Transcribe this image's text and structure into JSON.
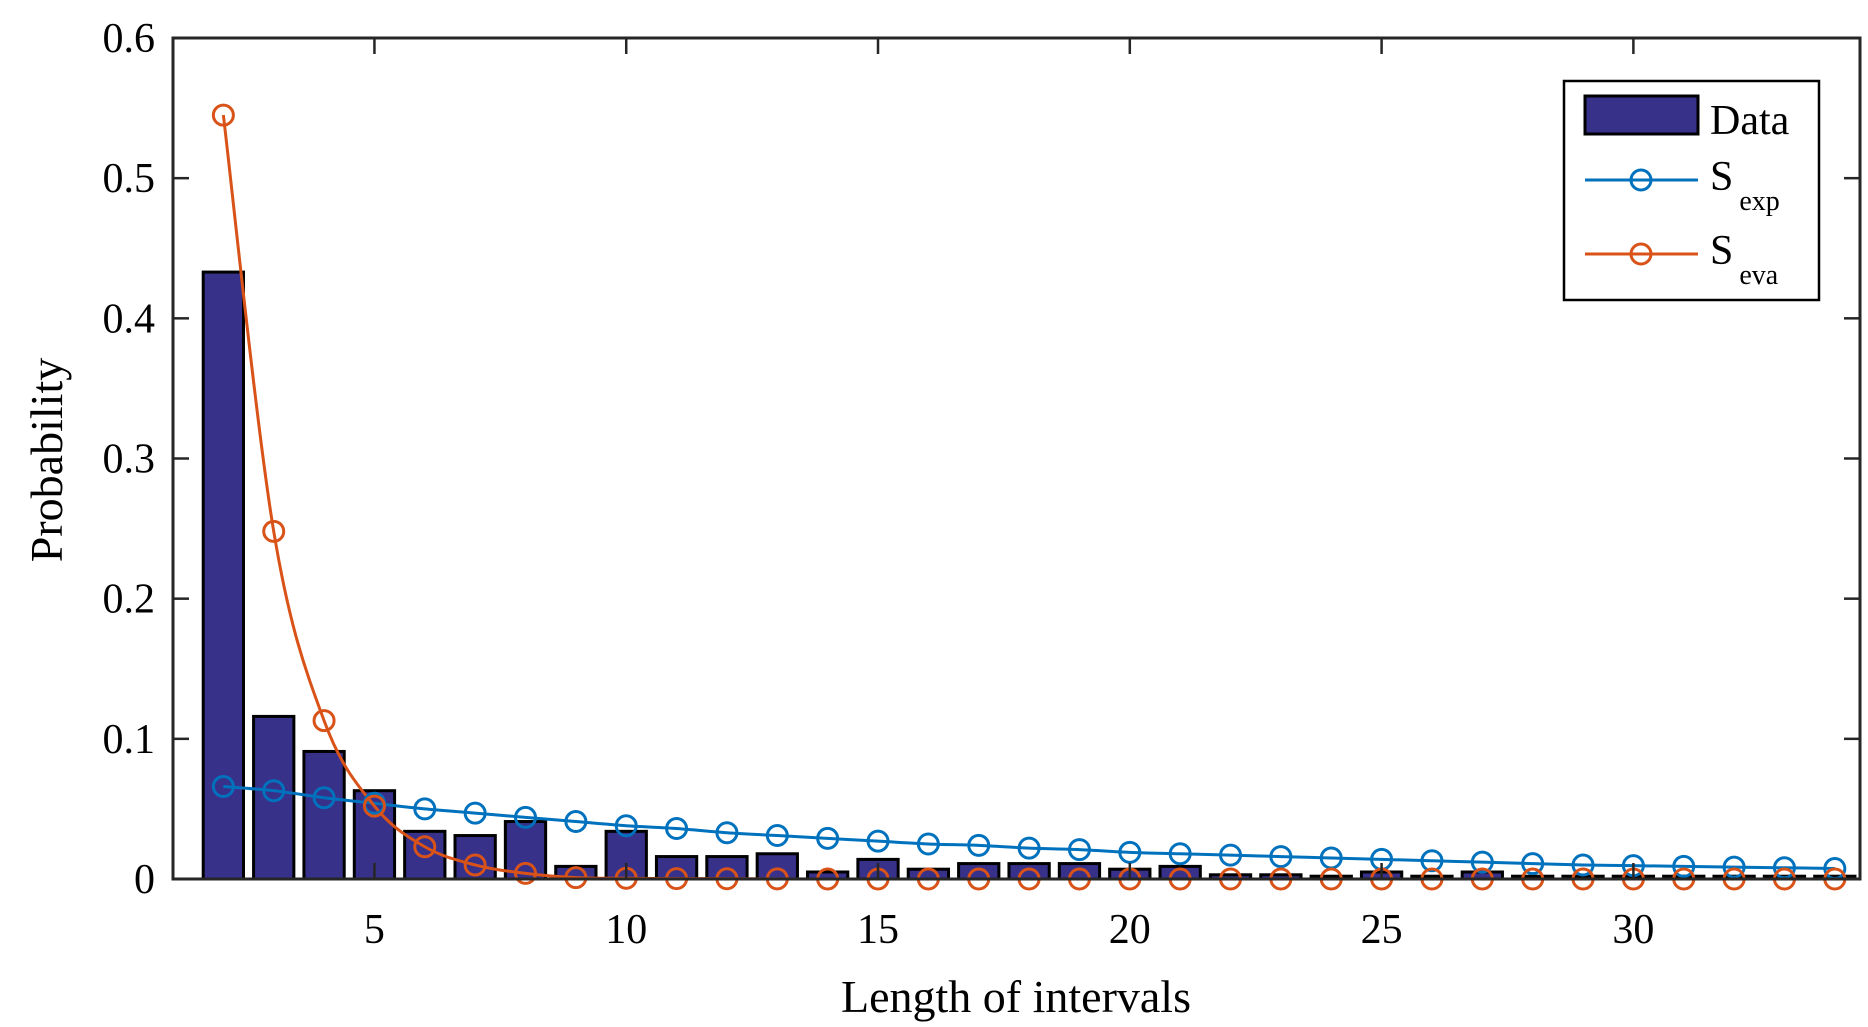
{
  "chart_data": {
    "type": "bar",
    "xlabel": "Length of intervals",
    "ylabel": "Probability",
    "xlim": [
      1,
      34.5
    ],
    "ylim": [
      0,
      0.6
    ],
    "xticks": [
      5,
      10,
      15,
      20,
      25,
      30
    ],
    "yticks": [
      0,
      0.1,
      0.2,
      0.3,
      0.4,
      0.5,
      0.6
    ],
    "xtick_labels": [
      "5",
      "10",
      "15",
      "20",
      "25",
      "30"
    ],
    "ytick_labels": [
      "0",
      "0.1",
      "0.2",
      "0.3",
      "0.4",
      "0.5",
      "0.6"
    ],
    "grid": false,
    "legend_position": "top-right",
    "x": [
      2,
      3,
      4,
      5,
      6,
      7,
      8,
      9,
      10,
      11,
      12,
      13,
      14,
      15,
      16,
      17,
      18,
      19,
      20,
      21,
      22,
      23,
      24,
      25,
      26,
      27,
      28,
      29,
      30,
      31,
      32,
      33,
      34
    ],
    "bars": {
      "name": "Data",
      "color": "#37318a",
      "values": [
        0.433,
        0.116,
        0.091,
        0.063,
        0.034,
        0.031,
        0.041,
        0.009,
        0.034,
        0.016,
        0.016,
        0.018,
        0.005,
        0.014,
        0.007,
        0.011,
        0.011,
        0.011,
        0.007,
        0.009,
        0.003,
        0.003,
        0.002,
        0.005,
        0.002,
        0.005,
        0.002,
        0.002,
        0.002,
        0.002,
        0.002,
        0.002,
        0.002
      ]
    },
    "series": [
      {
        "name": "S",
        "subscript": "exp",
        "color": "#0072bd",
        "values": [
          0.066,
          0.063,
          0.058,
          0.054,
          0.05,
          0.047,
          0.044,
          0.041,
          0.038,
          0.036,
          0.033,
          0.031,
          0.029,
          0.027,
          0.025,
          0.024,
          0.022,
          0.021,
          0.019,
          0.018,
          0.017,
          0.016,
          0.015,
          0.014,
          0.013,
          0.012,
          0.011,
          0.01,
          0.0095,
          0.009,
          0.0085,
          0.008,
          0.0075
        ]
      },
      {
        "name": "S",
        "subscript": "eva",
        "color": "#d95319",
        "values": [
          0.545,
          0.248,
          0.113,
          0.052,
          0.023,
          0.01,
          0.004,
          0.001,
          0.0005,
          0.0003,
          0.0002,
          0.0001,
          0,
          0,
          0,
          0,
          0,
          0,
          0,
          0,
          0,
          0,
          0,
          0,
          0,
          0,
          0,
          0,
          0,
          0,
          0,
          0,
          0
        ]
      }
    ]
  }
}
